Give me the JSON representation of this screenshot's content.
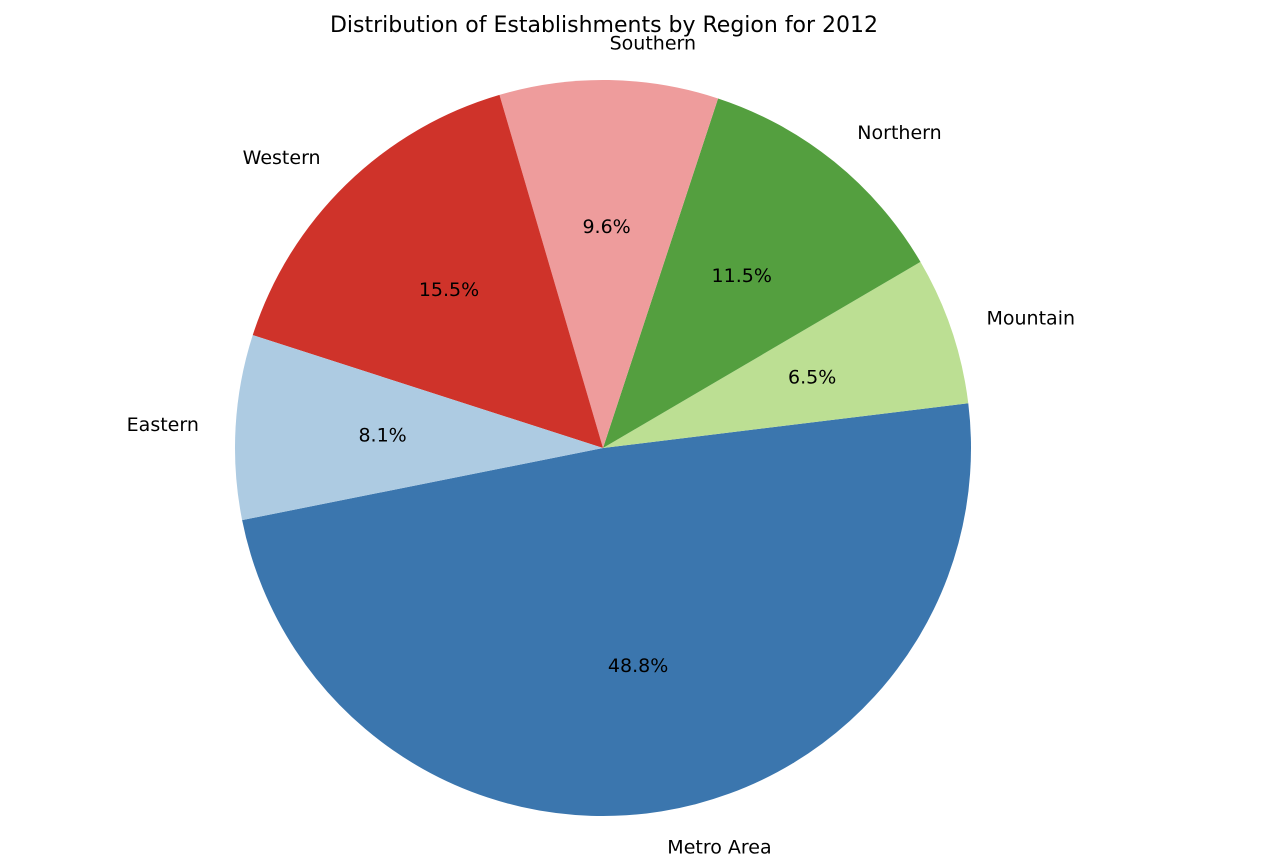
{
  "chart_data": {
    "type": "pie",
    "title": "Distribution of Establishments by Region for 2012",
    "labels": [
      "Metro Area",
      "Mountain",
      "Northern",
      "Southern",
      "Western",
      "Eastern"
    ],
    "values": [
      48.8,
      6.5,
      11.5,
      9.6,
      15.5,
      8.1
    ],
    "percent_labels": [
      "48.8%",
      "6.5%",
      "11.5%",
      "9.6%",
      "15.5%",
      "8.1%"
    ],
    "colors": [
      "#3b76ae",
      "#bcdf93",
      "#549f3f",
      "#ee9c9c",
      "#cf332a",
      "#adcbe2"
    ],
    "start_angle_deg": 191.3,
    "direction": "counterclockwise",
    "legend": "none"
  }
}
